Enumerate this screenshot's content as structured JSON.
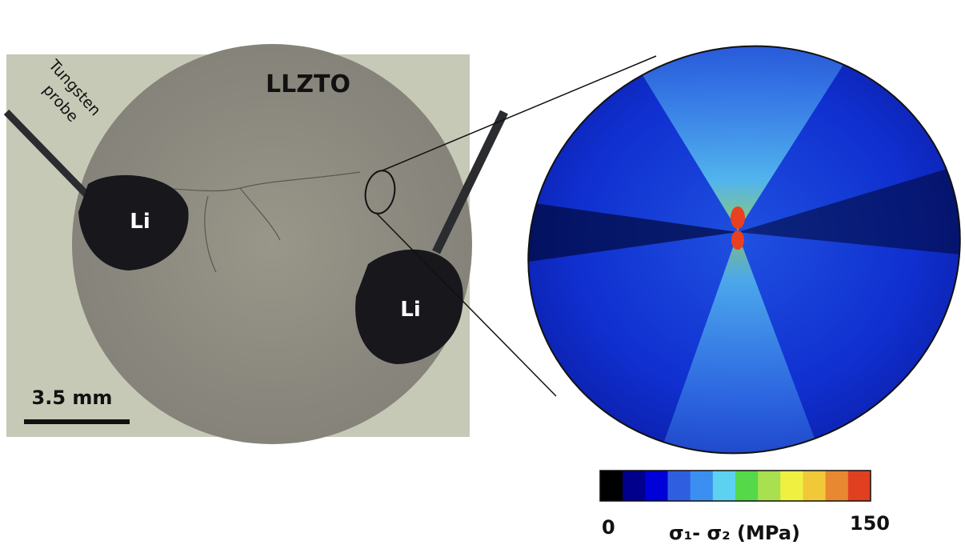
{
  "photo": {
    "sample_label": "LLZTO",
    "probe_label": [
      "Tungsten",
      "probe"
    ],
    "electrodes": [
      "Li",
      "Li"
    ],
    "scale_bar": "3.5 mm"
  },
  "colorbar": {
    "ticks": [
      0,
      150
    ],
    "label": "σ₁- σ₂ (MPa)",
    "colors": [
      "#000000",
      "#00008c",
      "#0000d8",
      "#2f5fe0",
      "#3b8ff0",
      "#5cd2f0",
      "#55d84a",
      "#a8e050",
      "#f0f040",
      "#f0c838",
      "#e88830",
      "#e04020"
    ]
  }
}
